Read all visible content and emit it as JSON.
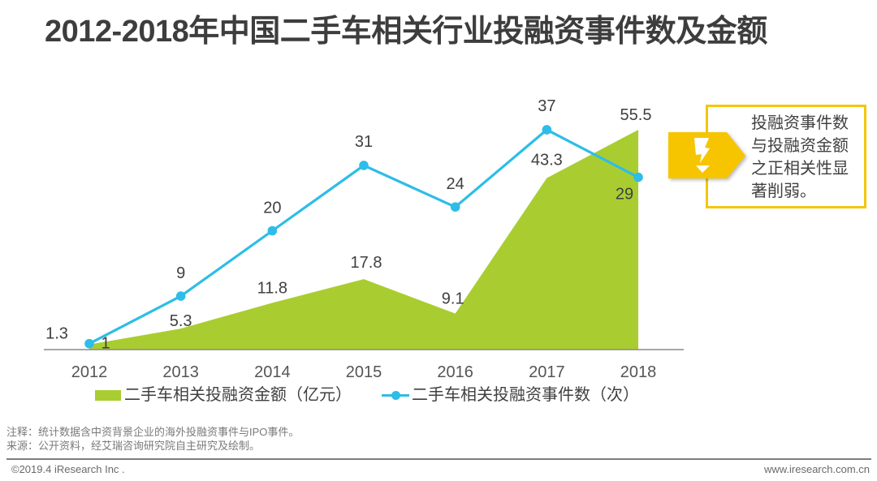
{
  "title": "2012-2018年中国二手车相关行业投融资事件数及金额",
  "chart_data": {
    "type": "area",
    "title": "2012-2018年中国二手车相关行业投融资事件数及金额",
    "xlabel": "",
    "ylabel": "",
    "categories": [
      "2012",
      "2013",
      "2014",
      "2015",
      "2016",
      "2017",
      "2018"
    ],
    "series": [
      {
        "name": "二手车相关投融资金额（亿元）",
        "type": "area",
        "axis": "amount",
        "values": [
          1.3,
          5.3,
          11.8,
          17.8,
          9.1,
          43.3,
          55.5
        ],
        "color": "#A9CD30"
      },
      {
        "name": "二手车相关投融资事件数（次）",
        "type": "line",
        "axis": "count",
        "values": [
          1,
          9,
          20,
          31,
          24,
          37,
          29
        ],
        "color": "#2DBDE8"
      }
    ],
    "ylim_amount": [
      0,
      60
    ],
    "ylim_count": [
      0,
      40
    ],
    "y_axis_visible": false,
    "grid": false,
    "data_labels": true,
    "legend": "bottom"
  },
  "callout": {
    "icon": "lightning-icon",
    "accent": "#F4C60A",
    "lines": [
      "投融资事件数",
      "与投融资金额",
      "之正相关性显",
      "著削弱。"
    ]
  },
  "footer": {
    "note": "注释：统计数据含中资背景企业的海外投融资事件与IPO事件。",
    "source": "来源：公开资料，经艾瑞咨询研究院自主研究及绘制。",
    "copyright": "©2019.4 iResearch Inc .",
    "website": "www.iresearch.com.cn"
  }
}
